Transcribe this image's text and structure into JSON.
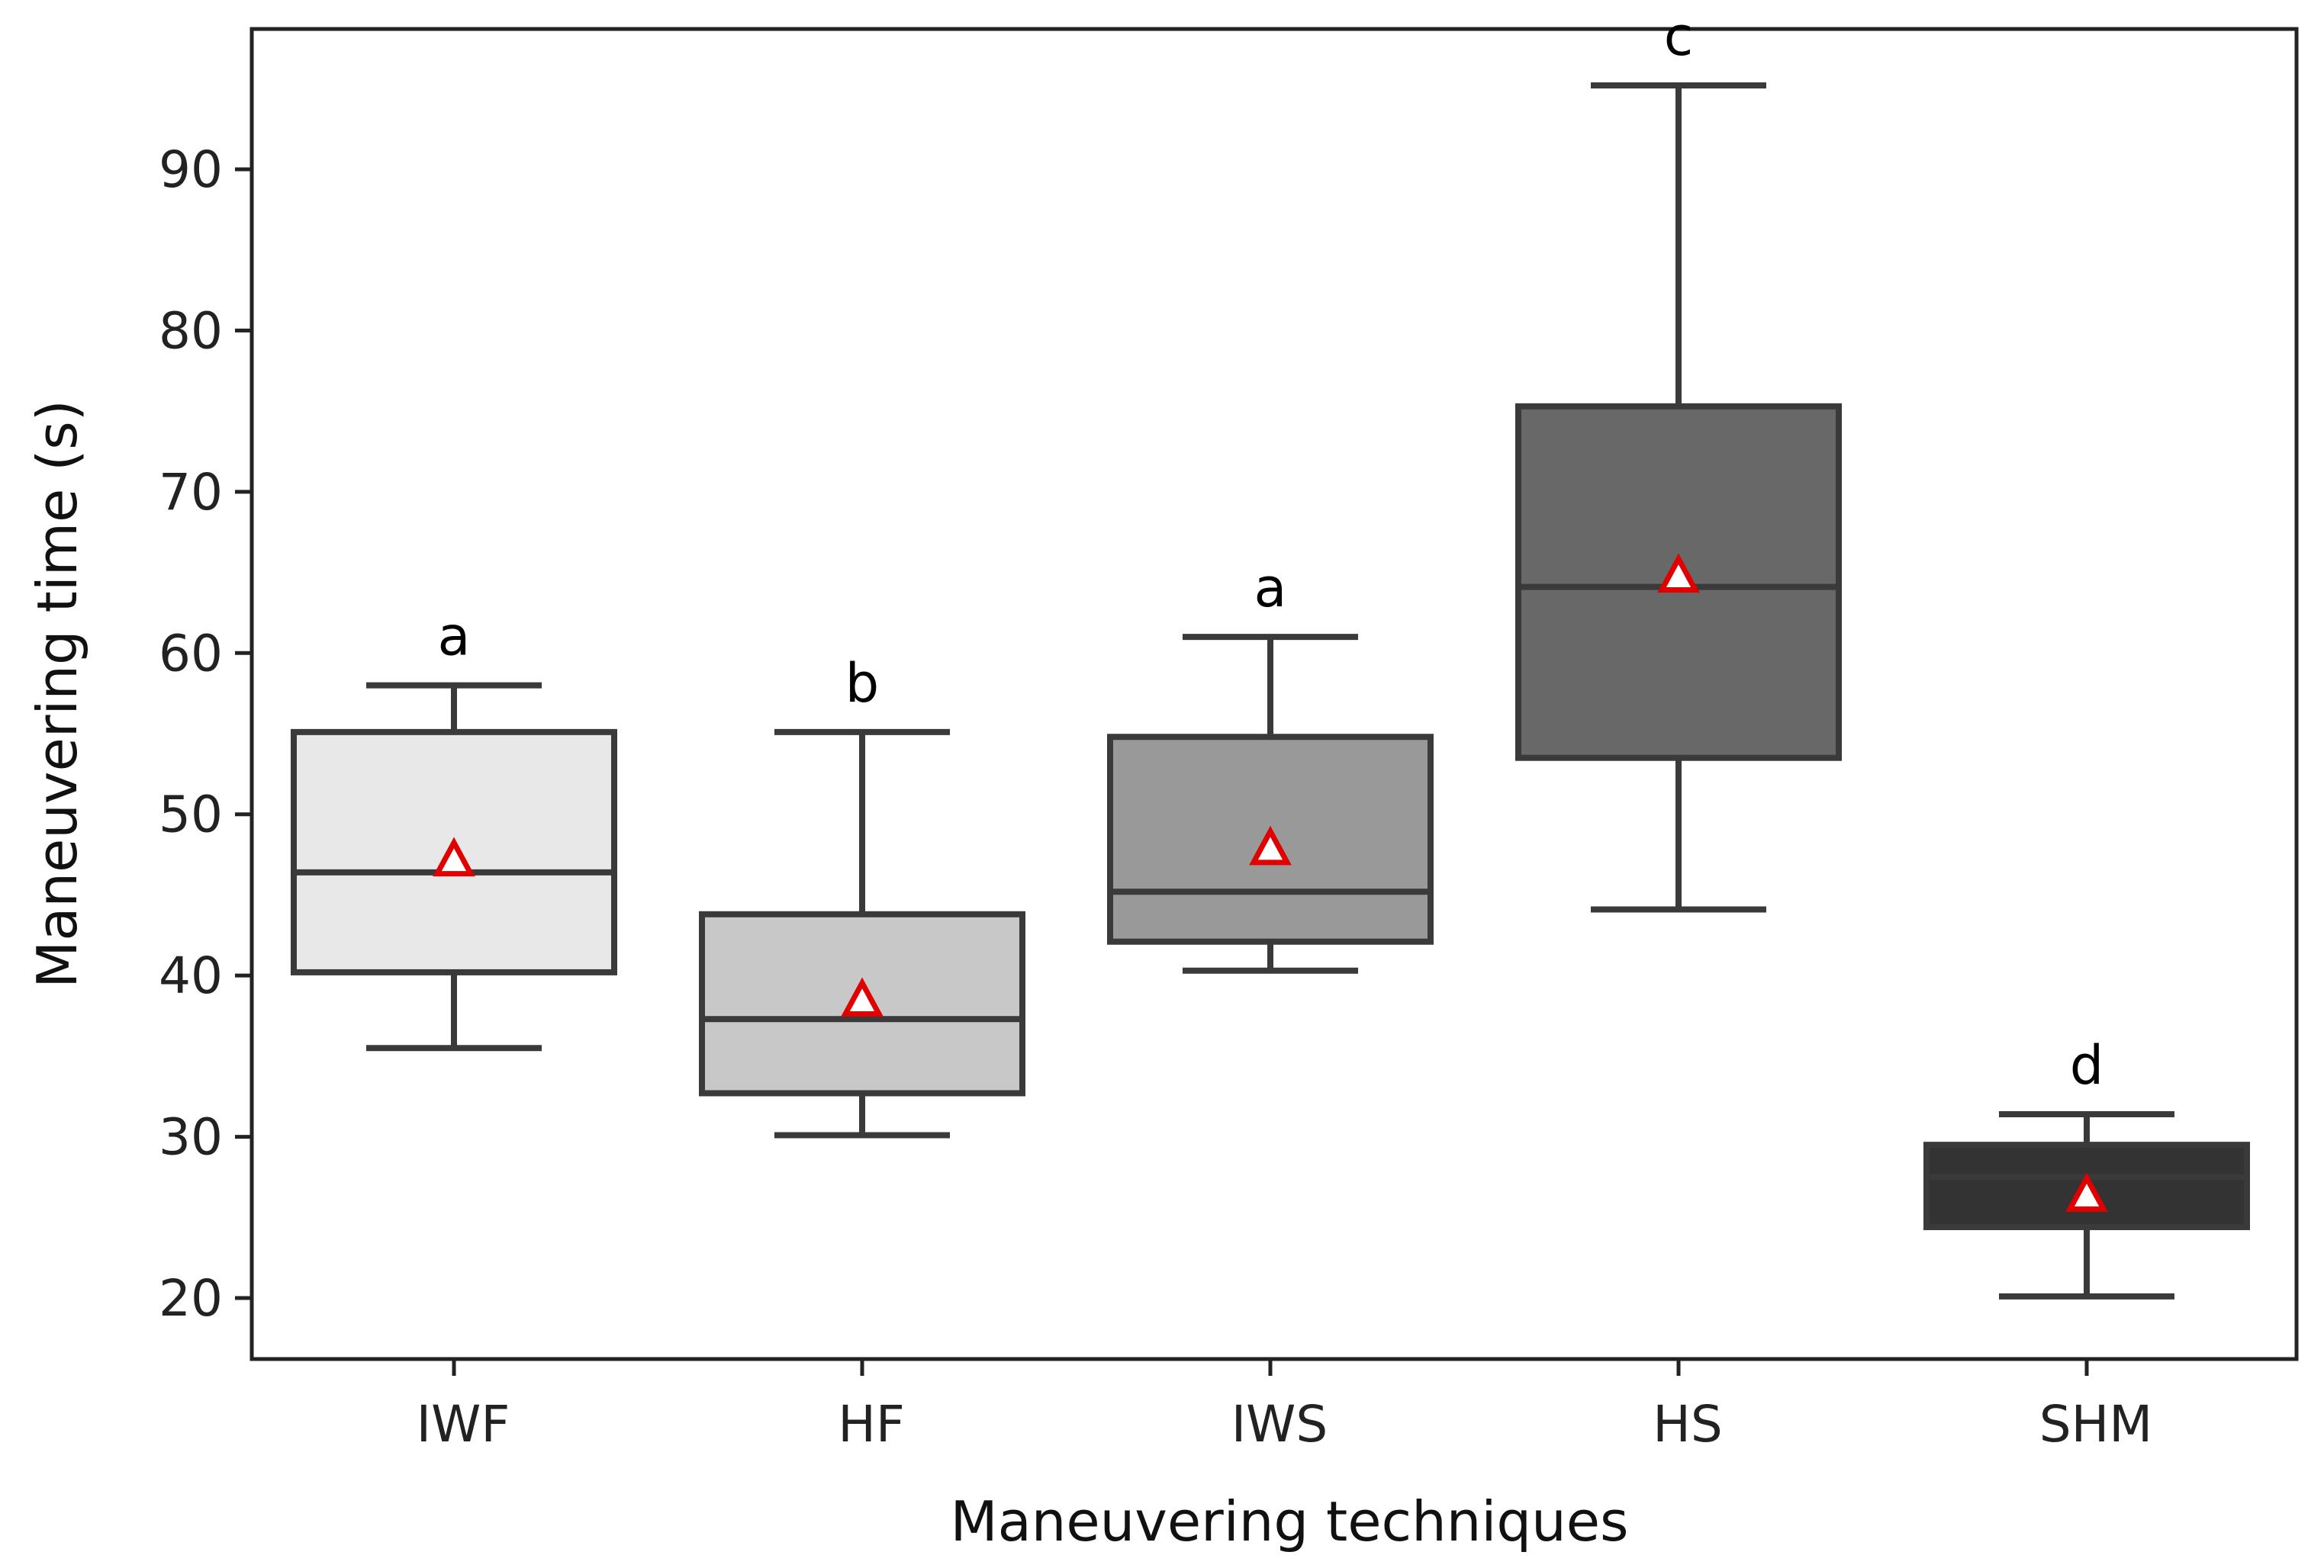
{
  "chart_data": {
    "type": "boxplot",
    "title": "",
    "xlabel": "Maneuvering techniques",
    "ylabel": "Maneuvering time (s)",
    "ylim": [
      16,
      99
    ],
    "yticks": [
      20,
      30,
      40,
      50,
      60,
      70,
      80,
      90
    ],
    "grid": false,
    "mean_marker": "red-outlined white triangle",
    "categories": [
      "IWF",
      "HF",
      "IWS",
      "HS",
      "SHM"
    ],
    "boxes": [
      {
        "category": "IWF",
        "whisker_low": 35.5,
        "q1": 40.2,
        "median": 46.4,
        "q3": 55.1,
        "whisker_high": 58.0,
        "mean": 47.2,
        "letter": "a",
        "fill": "#e8e8e8"
      },
      {
        "category": "HF",
        "whisker_low": 30.1,
        "q1": 32.7,
        "median": 37.3,
        "q3": 43.8,
        "whisker_high": 55.1,
        "mean": 38.5,
        "letter": "b",
        "fill": "#c8c8c8"
      },
      {
        "category": "IWS",
        "whisker_low": 40.3,
        "q1": 42.1,
        "median": 45.2,
        "q3": 54.8,
        "whisker_high": 61.0,
        "mean": 47.9,
        "letter": "a",
        "fill": "#999999"
      },
      {
        "category": "HS",
        "whisker_low": 44.1,
        "q1": 53.5,
        "median": 64.1,
        "q3": 75.3,
        "whisker_high": 95.2,
        "mean": 64.8,
        "letter": "c",
        "fill": "#686868"
      },
      {
        "category": "SHM",
        "whisker_low": 20.1,
        "q1": 24.4,
        "median": 27.5,
        "q3": 29.5,
        "whisker_high": 31.4,
        "mean": 26.4,
        "letter": "d",
        "fill": "#333333"
      }
    ]
  },
  "colors": {
    "box_edge": "#3a3a3a",
    "mean_edge": "#e00000",
    "mean_fill": "#ffffff",
    "frame": "#222222"
  }
}
